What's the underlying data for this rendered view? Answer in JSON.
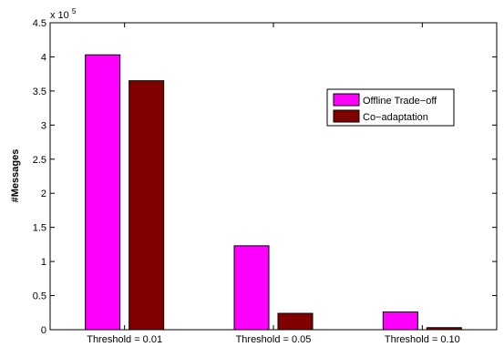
{
  "chart_data": {
    "type": "bar",
    "title": "",
    "xlabel": "",
    "ylabel": "#Messages",
    "ylim": [
      0,
      450000
    ],
    "y_ticks": [
      0,
      50000,
      100000,
      150000,
      200000,
      250000,
      300000,
      350000,
      400000,
      450000
    ],
    "y_tick_labels": [
      "0",
      "0.5",
      "1",
      "1.5",
      "2",
      "2.5",
      "3",
      "3.5",
      "4",
      "4.5"
    ],
    "y_multiplier_base": "x 10",
    "y_multiplier_exp": "5",
    "categories": [
      "Threshold = 0.01",
      "Threshold = 0.05",
      "Threshold = 0.10"
    ],
    "series": [
      {
        "name": "Offline Trade−off",
        "color": "#ff00ff",
        "values": [
          403000,
          123000,
          26000
        ]
      },
      {
        "name": "Co−adaptation",
        "color": "#800000",
        "values": [
          365000,
          24000,
          3000
        ]
      }
    ],
    "grid": false,
    "legend_position": "upper-right"
  }
}
